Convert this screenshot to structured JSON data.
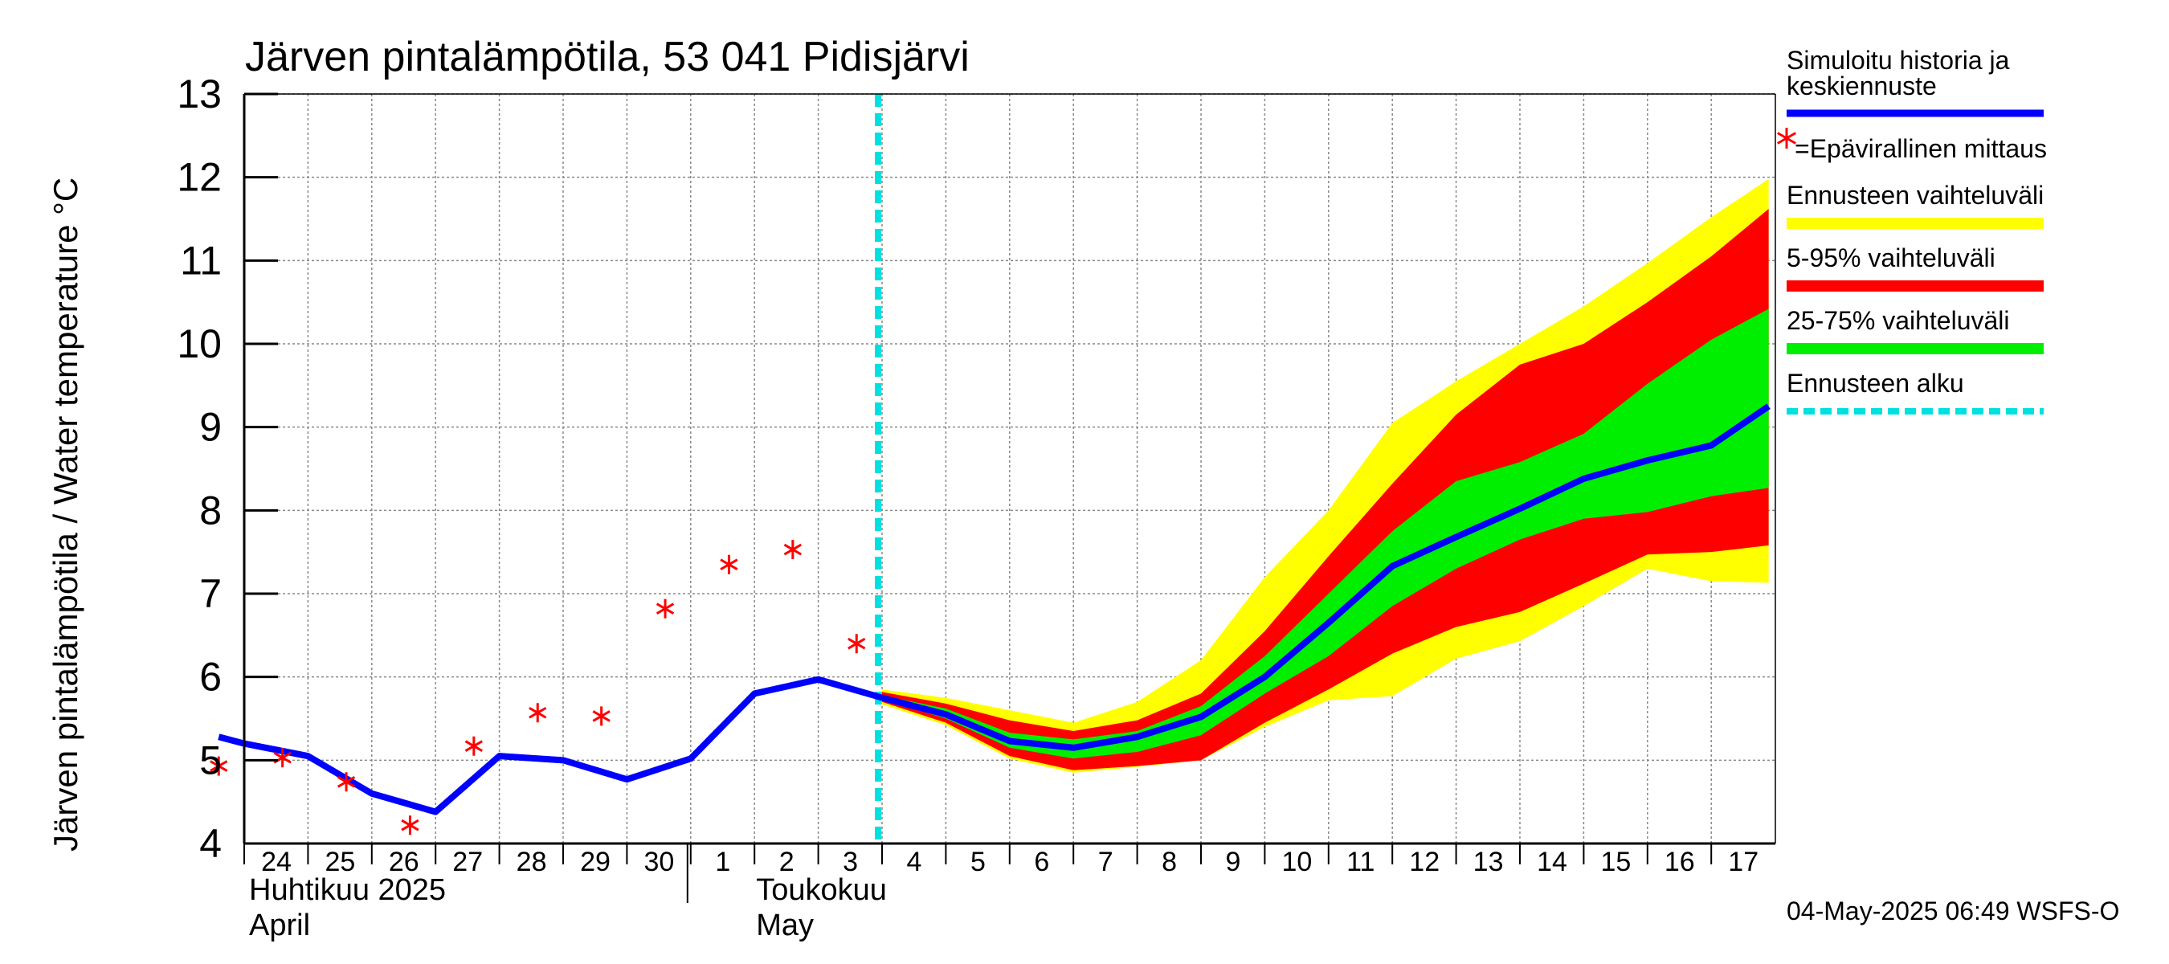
{
  "chart_data": {
    "type": "line",
    "title": "Järven pintalämpötila, 53 041 Pidisjärvi",
    "ylabel": "Järven pintalämpötila / Water temperature °C",
    "xlabel": "",
    "ylim": [
      4,
      13
    ],
    "yticks": [
      "4",
      "5",
      "6",
      "7",
      "8",
      "9",
      "10",
      "11",
      "12",
      "13"
    ],
    "x_days": [
      "24",
      "25",
      "26",
      "27",
      "28",
      "29",
      "30",
      "1",
      "2",
      "3",
      "4",
      "5",
      "6",
      "7",
      "8",
      "9",
      "10",
      "11",
      "12",
      "13",
      "14",
      "15",
      "16",
      "17"
    ],
    "month_labels": [
      {
        "line1": "Huhtikuu  2025",
        "line2": "April"
      },
      {
        "line1": "Toukokuu",
        "line2": "May"
      }
    ],
    "grid": true,
    "legend_position": "right",
    "forecast_start_day": 10.0,
    "series": [
      {
        "name": "Simuloitu historia ja keskiennuste",
        "color": "#0000ff",
        "x": [
          -0.4,
          0,
          1,
          2,
          3,
          4,
          5,
          6,
          7,
          8,
          9,
          10,
          11,
          12,
          13,
          14,
          15,
          16,
          17,
          18,
          19,
          20,
          21,
          22,
          23,
          23.9
        ],
        "values": [
          5.28,
          5.2,
          5.05,
          4.6,
          4.38,
          5.05,
          5.0,
          4.77,
          5.02,
          5.8,
          5.97,
          5.75,
          5.55,
          5.23,
          5.15,
          5.28,
          5.52,
          6.0,
          6.65,
          7.33,
          7.68,
          8.02,
          8.38,
          8.6,
          8.78,
          9.25
        ]
      },
      {
        "name": "=Epävirallinen mittaus",
        "color": "#ff0000",
        "x": [
          -0.4,
          0.6,
          1.6,
          2.6,
          3.6,
          4.6,
          5.6,
          6.6,
          7.6,
          8.6,
          9.6
        ],
        "values": [
          4.93,
          5.03,
          4.74,
          4.22,
          5.17,
          5.57,
          5.53,
          6.82,
          7.35,
          7.53,
          6.4
        ]
      }
    ],
    "bands": [
      {
        "name": "Ennusteen vaihteluväli",
        "color": "#ffff00",
        "x": [
          10,
          11,
          12,
          13,
          14,
          15,
          16,
          17,
          18,
          19,
          20,
          21,
          22,
          23,
          23.9
        ],
        "lower": [
          5.67,
          5.42,
          5.02,
          4.85,
          4.92,
          5.0,
          5.4,
          5.72,
          5.77,
          6.22,
          6.43,
          6.85,
          7.3,
          7.15,
          7.13
        ],
        "upper": [
          5.85,
          5.75,
          5.6,
          5.45,
          5.7,
          6.2,
          7.2,
          8.0,
          9.05,
          9.55,
          10.0,
          10.45,
          10.97,
          11.52,
          11.98
        ]
      },
      {
        "name": "5-95% vaihteluväli",
        "color": "#ff0000",
        "x": [
          10,
          11,
          12,
          13,
          14,
          15,
          16,
          17,
          18,
          19,
          20,
          21,
          22,
          23,
          23.9
        ],
        "lower": [
          5.7,
          5.45,
          5.05,
          4.88,
          4.93,
          5.0,
          5.45,
          5.85,
          6.28,
          6.6,
          6.78,
          7.12,
          7.47,
          7.5,
          7.58
        ],
        "upper": [
          5.82,
          5.68,
          5.48,
          5.35,
          5.48,
          5.8,
          6.55,
          7.45,
          8.32,
          9.15,
          9.75,
          10.0,
          10.5,
          11.05,
          11.62
        ]
      },
      {
        "name": "25-75% vaihteluväli",
        "color": "#00ee00",
        "x": [
          10,
          11,
          12,
          13,
          14,
          15,
          16,
          17,
          18,
          19,
          20,
          21,
          22,
          23,
          23.9
        ],
        "lower": [
          5.73,
          5.5,
          5.15,
          5.02,
          5.1,
          5.3,
          5.8,
          6.25,
          6.85,
          7.3,
          7.65,
          7.9,
          7.98,
          8.17,
          8.27
        ],
        "upper": [
          5.78,
          5.62,
          5.33,
          5.25,
          5.35,
          5.65,
          6.25,
          7.0,
          7.75,
          8.35,
          8.58,
          8.92,
          9.52,
          10.05,
          10.42
        ]
      }
    ],
    "legend": [
      {
        "label": "Simuloitu historia ja keskiennuste",
        "color": "#0000ff",
        "style": "line"
      },
      {
        "label": "=Epävirallinen mittaus",
        "color": "#ff0000",
        "style": "marker"
      },
      {
        "label": "Ennusteen vaihteluväli",
        "color": "#ffff00",
        "style": "band"
      },
      {
        "label": "5-95% vaihteluväli",
        "color": "#ff0000",
        "style": "band"
      },
      {
        "label": "25-75% vaihteluväli",
        "color": "#00ee00",
        "style": "band"
      },
      {
        "label": "Ennusteen alku",
        "color": "#00e0e0",
        "style": "dashed"
      }
    ],
    "footer": "04-May-2025 06:49 WSFS-O"
  }
}
